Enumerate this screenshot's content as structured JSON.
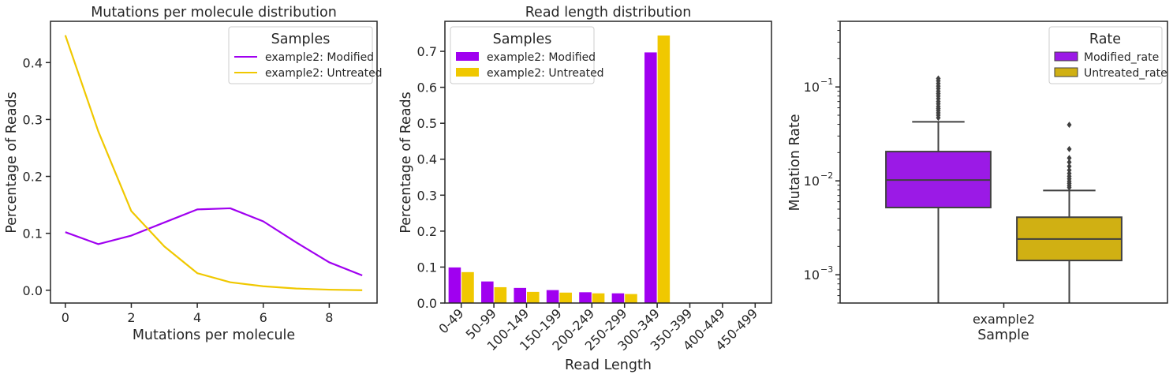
{
  "chart_data": [
    {
      "type": "line",
      "title": "Mutations per molecule distribution",
      "xlabel": "Mutations per molecule",
      "ylabel": "Percentage of Reads",
      "xlim": [
        -0.45,
        9.45
      ],
      "ylim": [
        -0.0225,
        0.4725
      ],
      "xticks": [
        0,
        2,
        4,
        6,
        8
      ],
      "yticks": [
        0.0,
        0.1,
        0.2,
        0.3,
        0.4
      ],
      "ytick_labels": [
        "0.0",
        "0.1",
        "0.2",
        "0.3",
        "0.4"
      ],
      "x": [
        0,
        1,
        2,
        3,
        4,
        5,
        6,
        7,
        8,
        9
      ],
      "legend_title": "Samples",
      "legend_position": "upper right",
      "series": [
        {
          "name": "example2: Modified",
          "color": "#a000f0",
          "values": [
            0.102,
            0.081,
            0.096,
            0.119,
            0.142,
            0.144,
            0.121,
            0.084,
            0.049,
            0.026
          ]
        },
        {
          "name": "example2: Untreated",
          "color": "#f0c800",
          "values": [
            0.448,
            0.279,
            0.139,
            0.077,
            0.03,
            0.014,
            0.007,
            0.003,
            0.001,
            0.0
          ]
        }
      ]
    },
    {
      "type": "bar",
      "title": "Read length distribution",
      "xlabel": "Read Length",
      "ylabel": "Percentage of Reads",
      "ylim": [
        0,
        0.7835
      ],
      "yticks": [
        0.0,
        0.1,
        0.2,
        0.3,
        0.4,
        0.5,
        0.6,
        0.7
      ],
      "ytick_labels": [
        "0.0",
        "0.1",
        "0.2",
        "0.3",
        "0.4",
        "0.5",
        "0.6",
        "0.7"
      ],
      "categories": [
        "0-49",
        "50-99",
        "100-149",
        "150-199",
        "200-249",
        "250-299",
        "300-349",
        "350-399",
        "400-449",
        "450-499"
      ],
      "legend_title": "Samples",
      "legend_position": "upper left",
      "series": [
        {
          "name": "example2: Modified",
          "color": "#a000f0",
          "values": [
            0.099,
            0.06,
            0.042,
            0.036,
            0.03,
            0.027,
            0.697,
            0,
            0,
            0
          ]
        },
        {
          "name": "example2: Untreated",
          "color": "#f0c800",
          "values": [
            0.086,
            0.044,
            0.031,
            0.029,
            0.027,
            0.025,
            0.744,
            0,
            0,
            0
          ]
        }
      ]
    },
    {
      "type": "box",
      "title": "",
      "xlabel": "Sample",
      "ylabel": "Mutation Rate",
      "yscale": "log",
      "ylim": [
        0.0005,
        0.5
      ],
      "yticks": [
        {
          "value": 0.001,
          "base": "10",
          "exp": "−3"
        },
        {
          "value": 0.01,
          "base": "10",
          "exp": "−2"
        },
        {
          "value": 0.1,
          "base": "10",
          "exp": "−1"
        }
      ],
      "categories": [
        "example2"
      ],
      "legend_title": "Rate",
      "legend_position": "upper right",
      "series": [
        {
          "name": "Modified_rate",
          "color": "#9b1ae6",
          "q1": 0.0052,
          "median": 0.0102,
          "q3": 0.0205,
          "whisker_low": 0.0003,
          "whisker_high": 0.0425,
          "outliers": [
            0.047,
            0.05,
            0.053,
            0.056,
            0.059,
            0.062,
            0.066,
            0.07,
            0.075,
            0.08,
            0.085,
            0.09,
            0.096,
            0.102,
            0.109,
            0.116,
            0.123
          ]
        },
        {
          "name": "Untreated_rate",
          "color": "#d0b013",
          "q1": 0.00142,
          "median": 0.0024,
          "q3": 0.0041,
          "whisker_low": 0.0003,
          "whisker_high": 0.0079,
          "outliers": [
            0.0085,
            0.0089,
            0.0094,
            0.0099,
            0.0105,
            0.0112,
            0.012,
            0.013,
            0.0143,
            0.0158,
            0.0175,
            0.0218,
            0.0395
          ]
        }
      ]
    }
  ]
}
